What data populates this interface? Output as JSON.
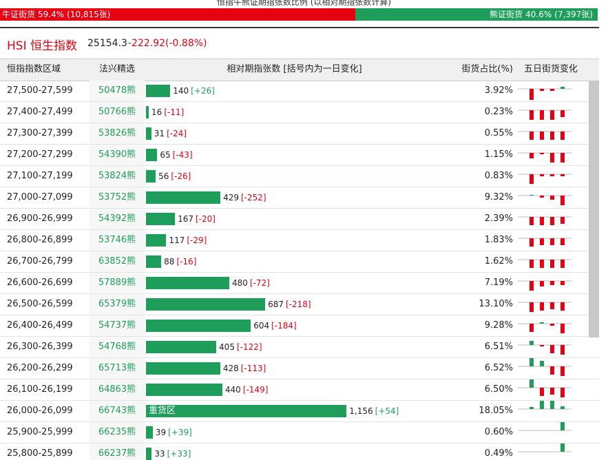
{
  "caption": "恒指牛熊证期指张数比例 (以相对期指张数计算)",
  "ratio": {
    "bull": {
      "label": "牛证街货",
      "percent": 59.4,
      "percent_label": "59.4%",
      "count_label": "(10,815张)"
    },
    "bear": {
      "label": "熊证街货",
      "percent": 40.6,
      "percent_label": "40.6%",
      "count_label": "(7,397张)"
    }
  },
  "header": {
    "name": "HSI 恒生指数",
    "price": "25154.3",
    "change": "-222.92(-0.88%)"
  },
  "table": {
    "columns": [
      "恒指指数区域",
      "法兴精选",
      "相对期指张数 [括号内为一日变化]",
      "街货占比(%)",
      "五日街货变化"
    ],
    "rows": [
      {
        "range": "27,500-27,599",
        "code": "50478熊",
        "count": 140,
        "change": 26,
        "change_label": "[+26]",
        "share": "3.92%",
        "five_day": [
          0,
          -16,
          -3,
          -3,
          3
        ]
      },
      {
        "range": "27,400-27,499",
        "code": "50766熊",
        "count": 16,
        "change": -11,
        "change_label": "[-11]",
        "share": "0.23%",
        "five_day": [
          0,
          -14,
          -14,
          -14,
          -10
        ]
      },
      {
        "range": "27,300-27,399",
        "code": "53826熊",
        "count": 31,
        "change": -24,
        "change_label": "[-24]",
        "share": "0.55%",
        "five_day": [
          0,
          -12,
          -12,
          -12,
          -12
        ]
      },
      {
        "range": "27,200-27,299",
        "code": "54390熊",
        "count": 65,
        "change": -43,
        "change_label": "[-43]",
        "share": "1.15%",
        "five_day": [
          0,
          -8,
          -2,
          -14,
          -14
        ]
      },
      {
        "range": "27,100-27,199",
        "code": "53824熊",
        "count": 56,
        "change": -26,
        "change_label": "[-26]",
        "share": "0.83%",
        "five_day": [
          0,
          -14,
          -3,
          -3,
          -3
        ]
      },
      {
        "range": "27,000-27,099",
        "code": "53752熊",
        "count": 429,
        "change": -252,
        "change_label": "[-252]",
        "share": "9.32%",
        "five_day": [
          0,
          1,
          -3,
          -6,
          -14
        ]
      },
      {
        "range": "26,900-26,999",
        "code": "54392熊",
        "count": 167,
        "change": -20,
        "change_label": "[-20]",
        "share": "2.39%",
        "five_day": [
          0,
          -12,
          -12,
          -12,
          -10
        ]
      },
      {
        "range": "26,800-26,899",
        "code": "53746熊",
        "count": 117,
        "change": -29,
        "change_label": "[-29]",
        "share": "1.83%",
        "five_day": [
          0,
          -12,
          -10,
          -10,
          -10
        ]
      },
      {
        "range": "26,700-26,799",
        "code": "63852熊",
        "count": 88,
        "change": -16,
        "change_label": "[-16]",
        "share": "1.62%",
        "five_day": [
          0,
          -12,
          -12,
          -12,
          -12
        ]
      },
      {
        "range": "26,600-26,699",
        "code": "57889熊",
        "count": 480,
        "change": -72,
        "change_label": "[-72]",
        "share": "7.19%",
        "five_day": [
          0,
          -14,
          -8,
          -6,
          -6
        ]
      },
      {
        "range": "26,500-26,599",
        "code": "65379熊",
        "count": 687,
        "change": -218,
        "change_label": "[-218]",
        "share": "13.10%",
        "five_day": [
          0,
          -14,
          -12,
          -10,
          -12
        ]
      },
      {
        "range": "26,400-26,499",
        "code": "54737熊",
        "count": 604,
        "change": -184,
        "change_label": "[-184]",
        "share": "9.28%",
        "five_day": [
          0,
          -12,
          2,
          -3,
          -14
        ]
      },
      {
        "range": "26,300-26,399",
        "code": "54768熊",
        "count": 405,
        "change": -122,
        "change_label": "[-122]",
        "share": "6.51%",
        "five_day": [
          0,
          6,
          -2,
          -12,
          -14
        ]
      },
      {
        "range": "26,200-26,299",
        "code": "65713熊",
        "count": 428,
        "change": -113,
        "change_label": "[-113]",
        "share": "6.52%",
        "five_day": [
          0,
          16,
          8,
          -12,
          -14
        ]
      },
      {
        "range": "26,100-26,199",
        "code": "64863熊",
        "count": 440,
        "change": -149,
        "change_label": "[-149]",
        "share": "6.50%",
        "five_day": [
          0,
          16,
          -12,
          -10,
          -14
        ]
      },
      {
        "range": "26,000-26,099",
        "code": "66743熊",
        "count": 1156,
        "count_label": "1,156",
        "change": 54,
        "change_label": "[+54]",
        "share": "18.05%",
        "bar_text": "重货区",
        "five_day": [
          0,
          3,
          12,
          14,
          4
        ]
      },
      {
        "range": "25,900-25,999",
        "code": "66235熊",
        "count": 39,
        "change": 39,
        "change_label": "[+39]",
        "share": "0.60%",
        "five_day": [
          0,
          0,
          0,
          0,
          16
        ]
      },
      {
        "range": "25,800-25,899",
        "code": "66237熊",
        "count": 33,
        "change": 33,
        "change_label": "[+33]",
        "share": "0.49%",
        "five_day": [
          0,
          0,
          0,
          0,
          16
        ]
      }
    ]
  }
}
